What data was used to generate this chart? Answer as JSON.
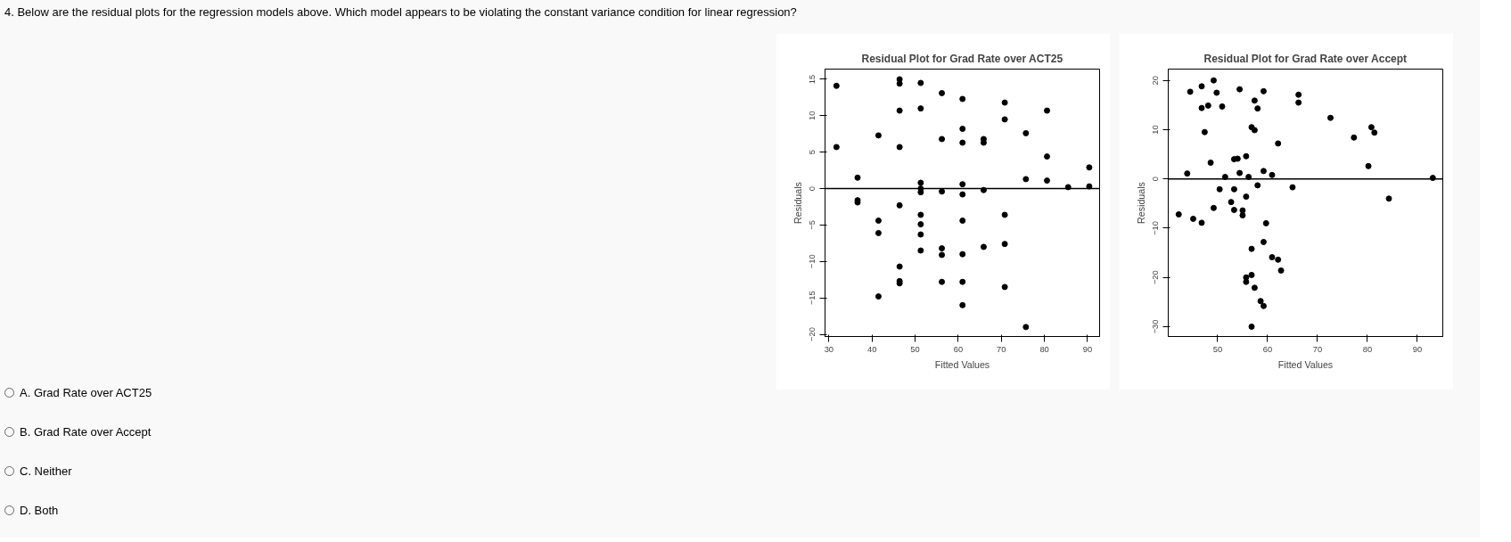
{
  "chart_data": [
    {
      "type": "other",
      "title": "4. Below are the residual plots for the regression models above. Which model appears to be violating the constant variance condition for linear regression?",
      "annotations": [
        "A. Grad Rate over ACT25",
        "B. Grad Rate over Accept",
        "C. Neither",
        "D. Both"
      ]
    },
    {
      "type": "scatter",
      "title": "Residual Plot for Grad Rate over ACT25",
      "xlabel": "Fitted Values",
      "ylabel": "Residuals",
      "xlim": [
        29.1,
        92.8
      ],
      "ylim": [
        -20.3,
        16.4
      ],
      "xticks": [
        30,
        40,
        50,
        60,
        70,
        80,
        90
      ],
      "yticks": [
        -20,
        -15,
        -10,
        -5,
        0,
        5,
        10,
        15
      ],
      "grid": false,
      "marker": "circle",
      "ref_lines": [
        {
          "axis": "y",
          "value": 0,
          "color": "#000000"
        }
      ],
      "series": [
        {
          "color": "#000000",
          "x": [
            31.75,
            31.75,
            36.65,
            36.65,
            36.65,
            41.5,
            41.5,
            41.5,
            41.5,
            46.4,
            46.4,
            46.4,
            46.4,
            46.4,
            46.4,
            46.4,
            46.4,
            51.3,
            51.3,
            51.3,
            51.3,
            51.3,
            51.3,
            51.3,
            51.3,
            51.3,
            56.2,
            56.2,
            56.2,
            56.2,
            56.2,
            56.2,
            61.0,
            61.0,
            61.0,
            61.0,
            61.0,
            61.0,
            61.0,
            61.0,
            61.0,
            65.9,
            65.9,
            65.9,
            65.9,
            70.8,
            70.8,
            70.8,
            70.8,
            70.8,
            75.7,
            75.7,
            75.7,
            80.6,
            80.6,
            80.6,
            85.5,
            90.4,
            90.4
          ],
          "values": [
            14.1,
            5.7,
            1.5,
            -1.6,
            -1.9,
            7.3,
            -4.4,
            -6.1,
            -14.8,
            15.0,
            14.4,
            10.7,
            5.7,
            -2.3,
            -10.7,
            -12.7,
            -13.0,
            14.5,
            11.0,
            0.8,
            0.0,
            -0.5,
            -3.6,
            -4.9,
            -6.3,
            -8.5,
            13.1,
            6.8,
            -0.4,
            -8.2,
            -9.1,
            -12.8,
            12.3,
            8.2,
            6.3,
            0.6,
            -0.8,
            -4.4,
            -9.0,
            -12.8,
            -16.0,
            6.8,
            6.3,
            -0.2,
            -8.0,
            11.8,
            9.5,
            -3.6,
            -7.6,
            -13.5,
            7.6,
            1.3,
            -19.0,
            10.7,
            4.4,
            1.1,
            0.2,
            2.9,
            0.3
          ]
        }
      ]
    },
    {
      "type": "scatter",
      "title": "Residual Plot for Grad Rate over Accept",
      "xlabel": "Fitted Values",
      "ylabel": "Residuals",
      "xlim": [
        40.1,
        95.1
      ],
      "ylim": [
        -32.0,
        22.3
      ],
      "xticks": [
        50,
        60,
        70,
        80,
        90
      ],
      "yticks": [
        -30,
        -20,
        -10,
        0,
        10,
        20
      ],
      "grid": false,
      "marker": "circle",
      "ref_lines": [
        {
          "axis": "y",
          "value": 0,
          "color": "#000000"
        }
      ],
      "series": [
        {
          "color": "#000000",
          "x": [
            42.2,
            43.9,
            44.5,
            45.1,
            46.8,
            46.8,
            46.8,
            47.4,
            48.1,
            48.6,
            49.2,
            49.2,
            49.8,
            50.4,
            50.9,
            51.5,
            52.7,
            53.3,
            53.3,
            53.3,
            54.0,
            54.4,
            54.4,
            55.0,
            55.0,
            55.7,
            55.7,
            55.7,
            55.7,
            56.2,
            56.8,
            56.8,
            56.8,
            56.8,
            57.4,
            57.4,
            57.4,
            58.0,
            58.0,
            58.6,
            59.2,
            59.2,
            59.2,
            59.2,
            59.7,
            60.9,
            60.9,
            62.1,
            62.1,
            62.7,
            65.0,
            66.2,
            66.2,
            72.6,
            77.3,
            80.2,
            80.8,
            81.4,
            84.3,
            93.1
          ],
          "values": [
            -7.2,
            1.1,
            17.7,
            -8.1,
            18.8,
            14.4,
            -8.9,
            9.5,
            14.9,
            3.3,
            20.0,
            -5.9,
            17.5,
            -2.1,
            14.7,
            0.4,
            -4.7,
            4.0,
            -2.1,
            -6.3,
            4.1,
            18.2,
            1.2,
            -6.4,
            -7.4,
            4.6,
            -3.6,
            -20.0,
            -20.9,
            0.4,
            10.5,
            -14.2,
            -19.5,
            -30.0,
            15.9,
            9.9,
            -22.1,
            14.3,
            -1.3,
            -24.8,
            17.8,
            1.6,
            -12.8,
            -25.8,
            -9.0,
            0.8,
            -15.9,
            7.2,
            -16.4,
            -18.6,
            -1.7,
            17.1,
            15.5,
            12.4,
            8.4,
            2.6,
            10.5,
            9.4,
            -4.0,
            0.2
          ]
        }
      ]
    }
  ]
}
